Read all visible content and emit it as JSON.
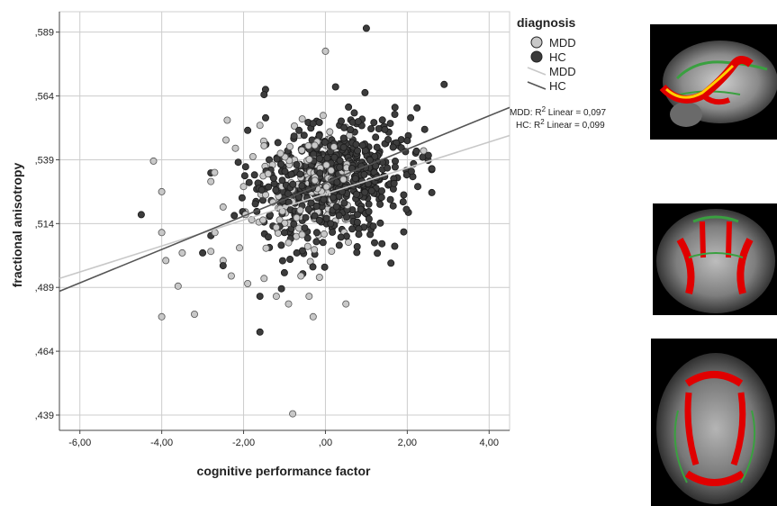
{
  "chart_data": {
    "type": "scatter",
    "xlabel": "cognitive performance factor",
    "ylabel": "fractional anisotropy",
    "xlim": [
      -6.5,
      4.5
    ],
    "ylim": [
      0.433,
      0.597
    ],
    "x_ticks": [
      -6,
      -4,
      -2,
      0,
      2,
      4
    ],
    "x_tick_labels": [
      "-6,00",
      "-4,00",
      "-2,00",
      ",00",
      "2,00",
      "4,00"
    ],
    "y_ticks": [
      0.439,
      0.464,
      0.489,
      0.514,
      0.539,
      0.564,
      0.589
    ],
    "y_tick_labels": [
      ",439",
      ",464",
      ",489",
      ",514",
      ",539",
      ",564",
      ",589"
    ],
    "grid": true,
    "legend": {
      "title": "diagnosis",
      "placement": "right",
      "entries": [
        {
          "label": "MDD",
          "kind": "marker",
          "color": "#c8c8c8"
        },
        {
          "label": "HC",
          "kind": "marker",
          "color": "#3c3c3c"
        },
        {
          "label": "MDD",
          "kind": "line",
          "color": "#c8c8c8"
        },
        {
          "label": "HC",
          "kind": "line",
          "color": "#555555"
        }
      ]
    },
    "annotations": [
      {
        "prefix": "MDD: R",
        "sup": "2",
        "suffix": " Linear = 0,097"
      },
      {
        "prefix": "HC: R",
        "sup": "2",
        "suffix": " Linear = 0,099"
      }
    ],
    "series": [
      {
        "name": "MDD",
        "color": "#c8c8c8",
        "edge": "#555555",
        "fit": {
          "x": [
            -6.5,
            4.5
          ],
          "y": [
            0.4925,
            0.5485
          ],
          "color": "#c8c8c8"
        },
        "points": [
          [
            -4.2,
            0.5385
          ],
          [
            -4.0,
            0.5265
          ],
          [
            -4.0,
            0.5105
          ],
          [
            -3.9,
            0.4995
          ],
          [
            -4.0,
            0.4775
          ],
          [
            -3.6,
            0.4895
          ],
          [
            -3.2,
            0.4785
          ],
          [
            -3.5,
            0.5025
          ],
          [
            -2.8,
            0.5305
          ],
          [
            -2.5,
            0.5205
          ],
          [
            -2.4,
            0.5545
          ],
          [
            -2.3,
            0.4935
          ],
          [
            -2.5,
            0.4995
          ],
          [
            -1.9,
            0.4905
          ],
          [
            -1.5,
            0.4925
          ],
          [
            -1.2,
            0.4855
          ],
          [
            -0.9,
            0.4825
          ],
          [
            -0.6,
            0.4935
          ],
          [
            -0.4,
            0.4855
          ],
          [
            -0.3,
            0.4775
          ],
          [
            0.5,
            0.4825
          ],
          [
            -0.8,
            0.4395
          ],
          [
            0.0,
            0.5815
          ],
          [
            -0.9,
            0.5065
          ],
          [
            -2.2,
            0.5435
          ],
          [
            -1.4,
            0.5335
          ],
          [
            2.4,
            0.5425
          ],
          [
            -1.6,
            0.5525
          ],
          [
            -2.0,
            0.5285
          ],
          [
            -1.8,
            0.5155
          ],
          [
            -2.7,
            0.5105
          ],
          [
            -2.1,
            0.5045
          ],
          [
            -1.2,
            0.5125
          ],
          [
            -1.1,
            0.5415
          ],
          [
            -1.5,
            0.5445
          ]
        ]
      },
      {
        "name": "HC",
        "color": "#3c3c3c",
        "edge": "#1a1a1a",
        "fit": {
          "x": [
            -6.5,
            4.5
          ],
          "y": [
            0.4875,
            0.5595
          ],
          "color": "#555555"
        },
        "points": [
          [
            -4.5,
            0.5175
          ],
          [
            -3.0,
            0.5025
          ],
          [
            -2.5,
            0.4975
          ],
          [
            -1.6,
            0.4855
          ],
          [
            -1.6,
            0.4715
          ],
          [
            -1.9,
            0.5505
          ],
          [
            1.0,
            0.5905
          ],
          [
            2.9,
            0.5685
          ],
          [
            1.7,
            0.5595
          ],
          [
            2.6,
            0.5355
          ],
          [
            2.1,
            0.5345
          ],
          [
            1.6,
            0.4985
          ],
          [
            1.2,
            0.5065
          ],
          [
            -1.5,
            0.5645
          ],
          [
            -1.0,
            0.5105
          ],
          [
            -0.7,
            0.5025
          ],
          [
            1.9,
            0.5225
          ],
          [
            2.0,
            0.5465
          ]
        ]
      }
    ],
    "cloud": {
      "count": 760,
      "center": [
        0.0,
        0.5305
      ],
      "spread": [
        0.95,
        0.0115
      ]
    }
  },
  "brain_images": [
    {
      "view": "sagittal"
    },
    {
      "view": "coronal"
    },
    {
      "view": "axial"
    }
  ]
}
